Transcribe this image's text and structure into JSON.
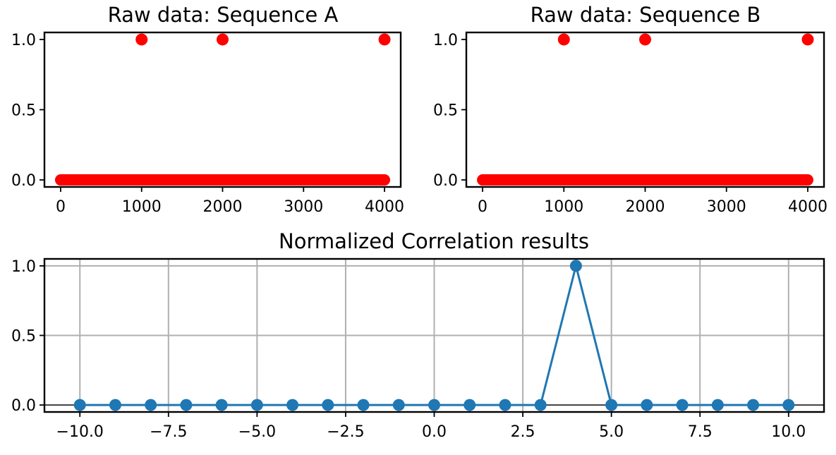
{
  "figure": {
    "panels": [
      {
        "title": "Raw data: Sequence A"
      },
      {
        "title": "Raw data: Sequence B"
      },
      {
        "title": "Normalized Correlation results"
      }
    ]
  },
  "chart_data": [
    {
      "type": "scatter",
      "title": "Raw data: Sequence A",
      "xlabel": "",
      "ylabel": "",
      "xlim": [
        -200,
        4200
      ],
      "ylim": [
        -0.05,
        1.05
      ],
      "xticks": [
        0,
        1000,
        2000,
        3000,
        4000
      ],
      "xtick_labels": [
        "0",
        "1000",
        "2000",
        "3000",
        "4000"
      ],
      "yticks": [
        0.0,
        0.5,
        1.0
      ],
      "ytick_labels": [
        "0.0",
        "0.5",
        "1.0"
      ],
      "grid": false,
      "color": "#ff0000",
      "points": [
        {
          "x": 1000,
          "y": 1.0
        },
        {
          "x": 2000,
          "y": 1.0
        },
        {
          "x": 4000,
          "y": 1.0
        }
      ],
      "baseline": {
        "x_start": 0,
        "x_end": 4000,
        "y": 0.0
      }
    },
    {
      "type": "scatter",
      "title": "Raw data: Sequence B",
      "xlabel": "",
      "ylabel": "",
      "xlim": [
        -200,
        4200
      ],
      "ylim": [
        -0.05,
        1.05
      ],
      "xticks": [
        0,
        1000,
        2000,
        3000,
        4000
      ],
      "xtick_labels": [
        "0",
        "1000",
        "2000",
        "3000",
        "4000"
      ],
      "yticks": [
        0.0,
        0.5,
        1.0
      ],
      "ytick_labels": [
        "0.0",
        "0.5",
        "1.0"
      ],
      "grid": false,
      "color": "#ff0000",
      "points": [
        {
          "x": 1000,
          "y": 1.0
        },
        {
          "x": 2000,
          "y": 1.0
        },
        {
          "x": 4000,
          "y": 1.0
        }
      ],
      "baseline": {
        "x_start": 0,
        "x_end": 4000,
        "y": 0.0
      }
    },
    {
      "type": "line",
      "title": "Normalized Correlation results",
      "xlabel": "",
      "ylabel": "",
      "xlim": [
        -11,
        11
      ],
      "ylim": [
        -0.05,
        1.05
      ],
      "xticks": [
        -10.0,
        -7.5,
        -5.0,
        -2.5,
        0.0,
        2.5,
        5.0,
        7.5,
        10.0
      ],
      "xtick_labels": [
        "−10.0",
        "−7.5",
        "−5.0",
        "−2.5",
        "0.0",
        "2.5",
        "5.0",
        "7.5",
        "10.0"
      ],
      "yticks": [
        0.0,
        0.5,
        1.0
      ],
      "ytick_labels": [
        "0.0",
        "0.5",
        "1.0"
      ],
      "grid": true,
      "hline_y": 0.0,
      "color": "#1f77b4",
      "x": [
        -10,
        -9,
        -8,
        -7,
        -6,
        -5,
        -4,
        -3,
        -2,
        -1,
        0,
        1,
        2,
        3,
        4,
        5,
        6,
        7,
        8,
        9,
        10
      ],
      "y": [
        0,
        0,
        0,
        0,
        0,
        0,
        0,
        0,
        0,
        0,
        0,
        0,
        0,
        0,
        1,
        0,
        0,
        0,
        0,
        0,
        0
      ]
    }
  ]
}
